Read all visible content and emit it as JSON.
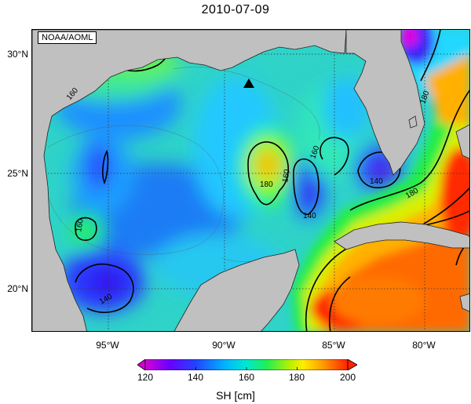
{
  "title": "2010-07-09",
  "source_label": "NOAA/AOML",
  "lat_ticks": [
    "30°N",
    "25°N",
    "20°N"
  ],
  "lon_ticks": [
    "95°W",
    "90°W",
    "85°W",
    "80°W"
  ],
  "contour_labels": [
    "160",
    "160",
    "180",
    "160",
    "140",
    "160",
    "180",
    "140",
    "140",
    "180",
    "180",
    "160",
    "140"
  ],
  "colorbar": {
    "ticks": [
      "120",
      "140",
      "160",
      "180",
      "200"
    ],
    "label": "SH [cm]",
    "colors": [
      "#d400d4",
      "#6a00ff",
      "#2244ff",
      "#00b8ff",
      "#00e8d0",
      "#22ee55",
      "#bff000",
      "#ffee00",
      "#ff9900",
      "#ff2200"
    ]
  },
  "colors": {
    "land": "#c0c0c0",
    "ocean_base": "#33d6c8"
  },
  "marker": "triangle-marker"
}
